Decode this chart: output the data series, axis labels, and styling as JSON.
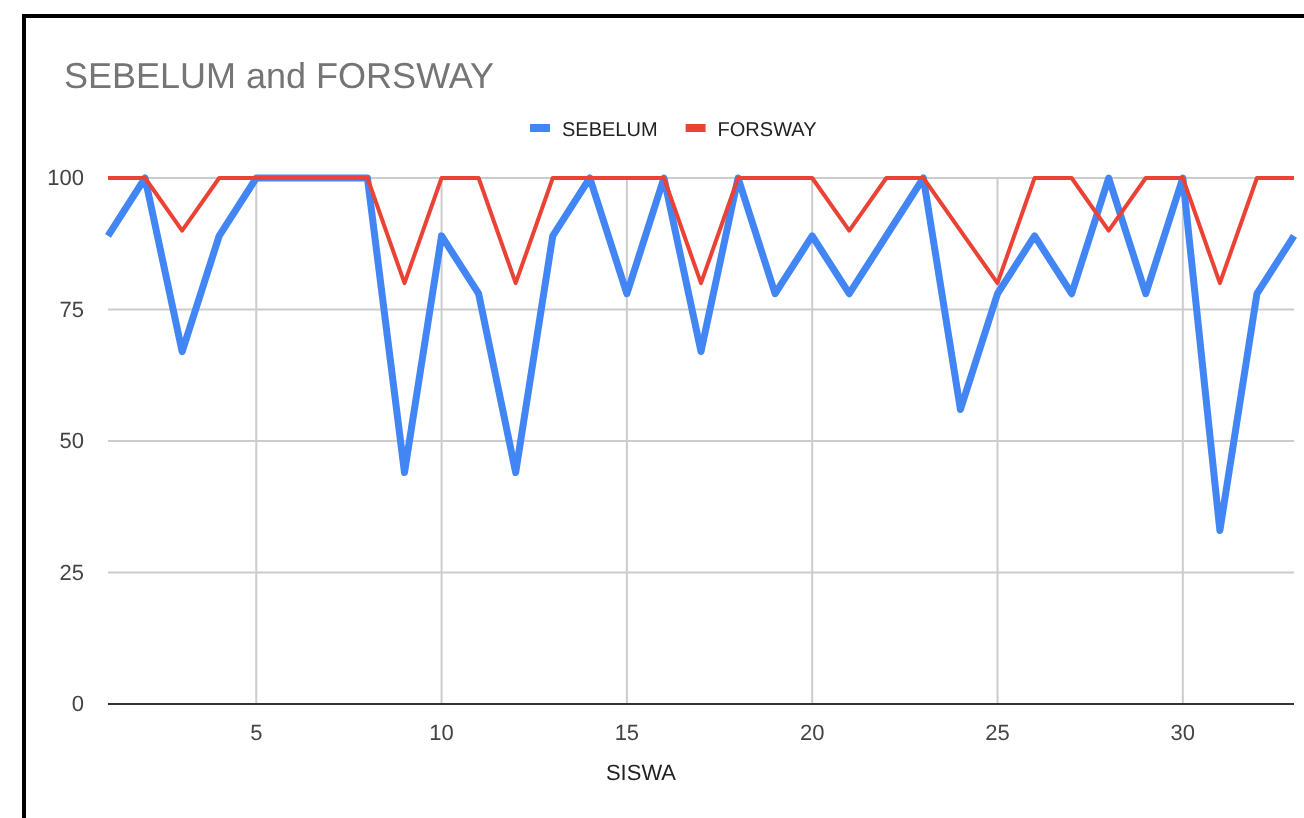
{
  "chart_data": {
    "type": "line",
    "title": "SEBELUM and FORSWAY",
    "xlabel": "SISWA",
    "x": [
      1,
      2,
      3,
      4,
      5,
      6,
      7,
      8,
      9,
      10,
      11,
      12,
      13,
      14,
      15,
      16,
      17,
      18,
      19,
      20,
      21,
      22,
      23,
      24,
      25,
      26,
      27,
      28,
      29,
      30,
      31,
      32,
      33
    ],
    "series": [
      {
        "name": "SEBELUM",
        "color": "#4285f4",
        "values": [
          89,
          100,
          67,
          89,
          100,
          100,
          100,
          100,
          44,
          89,
          78,
          44,
          89,
          100,
          78,
          100,
          67,
          100,
          78,
          89,
          78,
          89,
          100,
          56,
          78,
          89,
          78,
          100,
          78,
          100,
          33,
          78,
          89
        ]
      },
      {
        "name": "FORSWAY",
        "color": "#ea4335",
        "values": [
          100,
          100,
          90,
          100,
          100,
          100,
          100,
          100,
          80,
          100,
          100,
          80,
          100,
          100,
          100,
          100,
          80,
          100,
          100,
          100,
          90,
          100,
          100,
          90,
          80,
          100,
          100,
          90,
          100,
          100,
          80,
          100,
          100
        ]
      }
    ],
    "xlim": [
      1,
      33
    ],
    "xticks": [
      5,
      10,
      15,
      20,
      25,
      30
    ],
    "ylim": [
      0,
      100
    ],
    "yticks": [
      0,
      25,
      50,
      75,
      100
    ],
    "grid": true,
    "legend": "top",
    "marker": "none",
    "line_style": "solid"
  }
}
